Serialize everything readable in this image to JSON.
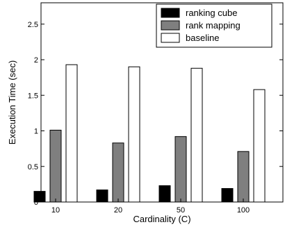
{
  "chart_data": {
    "type": "bar",
    "categories": [
      "10",
      "20",
      "50",
      "100"
    ],
    "series": [
      {
        "name": "ranking cube",
        "values": [
          0.15,
          0.17,
          0.23,
          0.19
        ],
        "color": "#000000"
      },
      {
        "name": "rank mapping",
        "values": [
          1.01,
          0.83,
          0.92,
          0.71
        ],
        "color": "#7f7f7f"
      },
      {
        "name": "baseline",
        "values": [
          1.93,
          1.9,
          1.88,
          1.58
        ],
        "color": "#ffffff"
      }
    ],
    "xlabel": "Cardinality (C)",
    "ylabel": "Execution Time (sec)",
    "ylim": [
      0,
      2.8
    ],
    "yticks": [
      0,
      0.5,
      1,
      1.5,
      2,
      2.5
    ],
    "ytick_labels": [
      "0",
      "0.5",
      "1",
      "1.5",
      "2",
      "2.5"
    ],
    "legend_position": "top-right",
    "grid": false
  }
}
